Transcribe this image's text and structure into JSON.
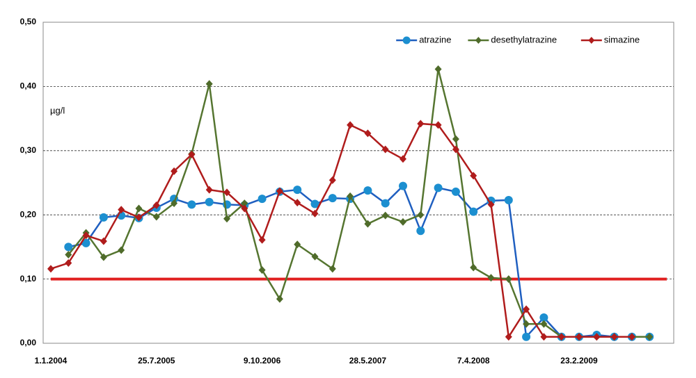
{
  "chart_data": {
    "type": "line",
    "y_label": "µg/l",
    "categories": [
      "1.1.2004",
      null,
      null,
      null,
      null,
      null,
      "25.7.2005",
      null,
      null,
      null,
      null,
      null,
      "9.10.2006",
      null,
      null,
      null,
      null,
      null,
      "28.5.2007",
      null,
      null,
      null,
      null,
      null,
      "7.4.2008",
      null,
      null,
      null,
      null,
      null,
      "23.2.2009",
      null,
      null,
      null,
      null
    ],
    "series": [
      {
        "name": "atrazine",
        "color": "#1f5fc0",
        "marker_color": "#1c8fd0",
        "marker": "circle",
        "values": [
          null,
          0.15,
          0.156,
          0.196,
          0.199,
          0.195,
          0.211,
          0.225,
          0.216,
          0.22,
          0.216,
          0.215,
          0.225,
          0.236,
          0.239,
          0.217,
          0.226,
          0.225,
          0.238,
          0.218,
          0.245,
          0.175,
          0.242,
          0.236,
          0.205,
          0.222,
          0.223,
          0.01,
          0.04,
          0.01,
          0.01,
          0.013,
          0.01,
          0.01,
          0.01
        ]
      },
      {
        "name": "desethylatrazine",
        "color": "#557530",
        "marker_color": "#4f6b2a",
        "marker": "diamond",
        "values": [
          null,
          0.138,
          0.172,
          0.134,
          0.145,
          0.21,
          0.197,
          0.218,
          0.295,
          0.404,
          0.194,
          0.218,
          0.114,
          0.069,
          0.154,
          0.135,
          0.116,
          0.229,
          0.186,
          0.199,
          0.189,
          0.2,
          0.427,
          0.318,
          0.118,
          0.102,
          0.1,
          0.03,
          0.03,
          0.01,
          0.01,
          0.01,
          0.01,
          0.01,
          0.01
        ]
      },
      {
        "name": "simazine",
        "color": "#b01c1c",
        "marker_color": "#b01c1c",
        "marker": "diamond",
        "values": [
          0.116,
          0.125,
          0.168,
          0.159,
          0.208,
          0.196,
          0.215,
          0.268,
          0.294,
          0.239,
          0.235,
          0.21,
          0.161,
          0.237,
          0.219,
          0.202,
          0.254,
          0.34,
          0.327,
          0.302,
          0.287,
          0.342,
          0.34,
          0.302,
          0.261,
          0.216,
          0.01,
          0.053,
          0.01,
          0.01,
          0.01,
          0.01,
          0.01,
          0.01,
          null
        ]
      }
    ],
    "reference_line": {
      "value": 0.1,
      "color": "#e02020"
    },
    "ylim": [
      0,
      0.5
    ],
    "yticks": [
      {
        "value": 0,
        "label": "0,00"
      },
      {
        "value": 0.1,
        "label": "0,10"
      },
      {
        "value": 0.2,
        "label": "0,20"
      },
      {
        "value": 0.3,
        "label": "0,30"
      },
      {
        "value": 0.4,
        "label": "0,40"
      },
      {
        "value": 0.5,
        "label": "0,50"
      }
    ],
    "grid": true,
    "legend": "top-right"
  }
}
